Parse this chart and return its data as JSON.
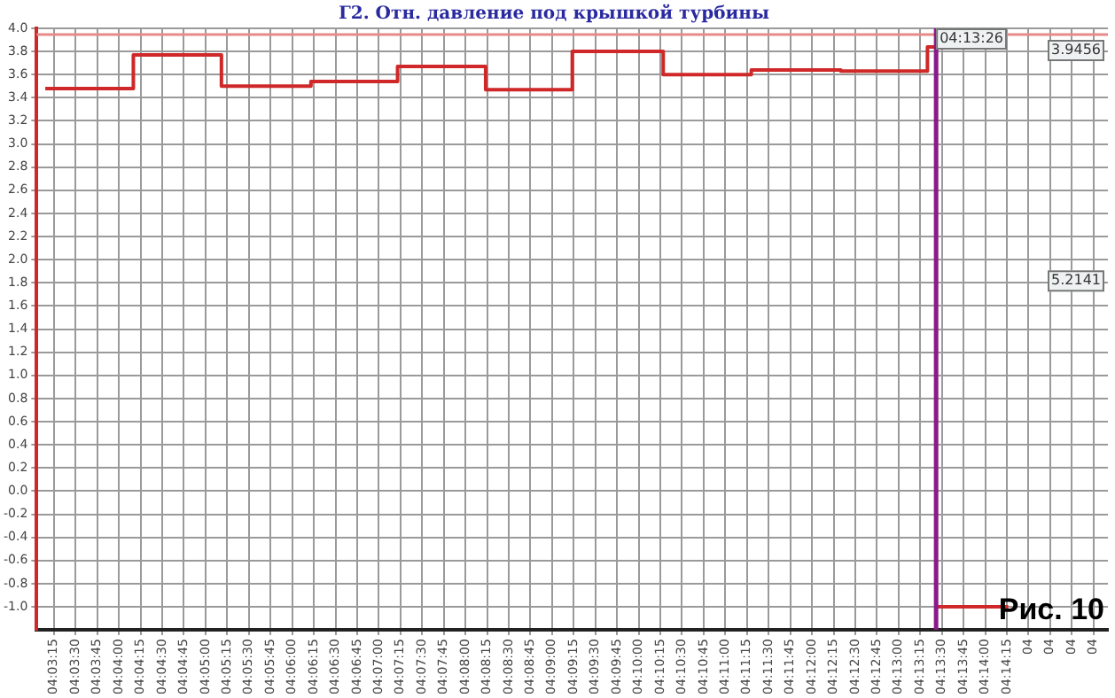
{
  "chart_data": {
    "type": "step",
    "title": "Г2. Отн. давление под крышкой турбины",
    "x": [
      4.0525,
      4.069444,
      4.086389,
      4.103611,
      4.120278,
      4.137222,
      4.153889,
      4.171389,
      4.188333,
      4.205556,
      4.222222,
      4.223889,
      4.237778
    ],
    "series": [
      {
        "color": "#d02828",
        "values": [
          3.48,
          3.77,
          3.5,
          3.54,
          3.67,
          3.47,
          3.8,
          3.6,
          3.64,
          3.63,
          3.84,
          -1.0,
          -1.0
        ]
      }
    ],
    "xlim": [
      4.050833,
      4.256944
    ],
    "xticks": [
      {
        "value": 4.054167,
        "label": "04:03:15"
      },
      {
        "value": 4.058333,
        "label": "04:03:30"
      },
      {
        "value": 4.0625,
        "label": "04:03:45"
      },
      {
        "value": 4.066667,
        "label": "04:04:00"
      },
      {
        "value": 4.070833,
        "label": "04:04:15"
      },
      {
        "value": 4.075,
        "label": "04:04:30"
      },
      {
        "value": 4.079167,
        "label": "04:04:45"
      },
      {
        "value": 4.083333,
        "label": "04:05:00"
      },
      {
        "value": 4.0875,
        "label": "04:05:15"
      },
      {
        "value": 4.091667,
        "label": "04:05:30"
      },
      {
        "value": 4.095833,
        "label": "04:05:45"
      },
      {
        "value": 4.1,
        "label": "04:06:00"
      },
      {
        "value": 4.104167,
        "label": "04:06:15"
      },
      {
        "value": 4.108333,
        "label": "04:06:30"
      },
      {
        "value": 4.1125,
        "label": "04:06:45"
      },
      {
        "value": 4.116667,
        "label": "04:07:00"
      },
      {
        "value": 4.120833,
        "label": "04:07:15"
      },
      {
        "value": 4.125,
        "label": "04:07:30"
      },
      {
        "value": 4.129167,
        "label": "04:07:45"
      },
      {
        "value": 4.133333,
        "label": "04:08:00"
      },
      {
        "value": 4.1375,
        "label": "04:08:15"
      },
      {
        "value": 4.141667,
        "label": "04:08:30"
      },
      {
        "value": 4.145833,
        "label": "04:08:45"
      },
      {
        "value": 4.15,
        "label": "04:09:00"
      },
      {
        "value": 4.154167,
        "label": "04:09:15"
      },
      {
        "value": 4.158333,
        "label": "04:09:30"
      },
      {
        "value": 4.1625,
        "label": "04:09:45"
      },
      {
        "value": 4.166667,
        "label": "04:10:00"
      },
      {
        "value": 4.170833,
        "label": "04:10:15"
      },
      {
        "value": 4.175,
        "label": "04:10:30"
      },
      {
        "value": 4.179167,
        "label": "04:10:45"
      },
      {
        "value": 4.183333,
        "label": "04:11:00"
      },
      {
        "value": 4.1875,
        "label": "04:11:15"
      },
      {
        "value": 4.191667,
        "label": "04:11:30"
      },
      {
        "value": 4.195833,
        "label": "04:11:45"
      },
      {
        "value": 4.2,
        "label": "04:12:00"
      },
      {
        "value": 4.204167,
        "label": "04:12:15"
      },
      {
        "value": 4.208333,
        "label": "04:12:30"
      },
      {
        "value": 4.2125,
        "label": "04:12:45"
      },
      {
        "value": 4.216667,
        "label": "04:13:00"
      },
      {
        "value": 4.220833,
        "label": "04:13:15"
      },
      {
        "value": 4.225,
        "label": "04:13:30"
      },
      {
        "value": 4.229167,
        "label": "04:13:45"
      },
      {
        "value": 4.233333,
        "label": "04:14:00"
      },
      {
        "value": 4.2375,
        "label": "04:14:15"
      },
      {
        "value": 4.241667,
        "label": "04"
      },
      {
        "value": 4.245833,
        "label": "04"
      },
      {
        "value": 4.25,
        "label": "04"
      },
      {
        "value": 4.254167,
        "label": "04"
      }
    ],
    "ylim": [
      -1.2,
      4.0
    ],
    "yticks": [
      {
        "value": -1.0,
        "label": "-1.0"
      },
      {
        "value": -0.8,
        "label": "-0.8"
      },
      {
        "value": -0.6,
        "label": "-0.6"
      },
      {
        "value": -0.4,
        "label": "-0.4"
      },
      {
        "value": -0.2,
        "label": "-0.2"
      },
      {
        "value": 0,
        "label": "0.0"
      },
      {
        "value": 0.2,
        "label": "0.2"
      },
      {
        "value": 0.4,
        "label": "0.4"
      },
      {
        "value": 0.6,
        "label": "0.6"
      },
      {
        "value": 0.8,
        "label": "0.8"
      },
      {
        "value": 1.0,
        "label": "1.0"
      },
      {
        "value": 1.2,
        "label": "1.2"
      },
      {
        "value": 1.4,
        "label": "1.4"
      },
      {
        "value": 1.6,
        "label": "1.6"
      },
      {
        "value": 1.8,
        "label": "1.8"
      },
      {
        "value": 2.0,
        "label": "2.0"
      },
      {
        "value": 2.2,
        "label": "2.2"
      },
      {
        "value": 2.4,
        "label": "2.4"
      },
      {
        "value": 2.6,
        "label": "2.6"
      },
      {
        "value": 2.8,
        "label": "2.8"
      },
      {
        "value": 3.0,
        "label": "3.0"
      },
      {
        "value": 3.2,
        "label": "3.2"
      },
      {
        "value": 3.4,
        "label": "3.4"
      },
      {
        "value": 3.6,
        "label": "3.6"
      },
      {
        "value": 3.8,
        "label": "3.8"
      },
      {
        "value": 4.0,
        "label": "4.0"
      }
    ],
    "ref_lines": [
      {
        "axis": "y",
        "value": 3.9456,
        "label": "3.9456",
        "color": "#e88a8a"
      },
      {
        "axis": "x",
        "value": 4.223889,
        "label": "04:13:26",
        "color": "#8a1a8a"
      }
    ],
    "annotations": [
      "5.2141",
      "Рис. 10"
    ],
    "grid": true,
    "legend": false,
    "marker": "none",
    "line_style": "solid"
  }
}
